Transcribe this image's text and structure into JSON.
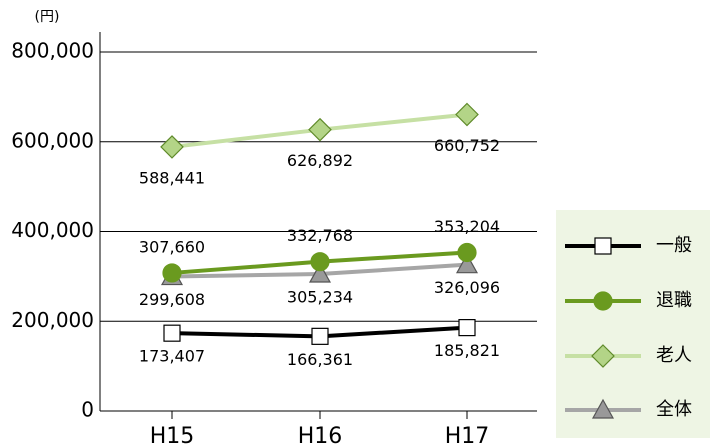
{
  "chart_data": {
    "type": "line",
    "unit_label": "(円)",
    "categories": [
      "H15",
      "H16",
      "H17"
    ],
    "series": [
      {
        "name": "一般",
        "color": "#000000",
        "marker": "square",
        "marker_fill": "#ffffff",
        "values": [
          173407,
          166361,
          185821
        ],
        "value_labels": [
          "173,407",
          "166,361",
          "185,821"
        ]
      },
      {
        "name": "退職",
        "color": "#6a9a1f",
        "marker": "circle",
        "marker_fill": "#6a9a1f",
        "values": [
          307660,
          332768,
          353204
        ],
        "value_labels": [
          "307,660",
          "332,768",
          "353,204"
        ]
      },
      {
        "name": "老人",
        "color": "#c6e0a4",
        "marker": "diamond",
        "marker_fill": "#b3d487",
        "values": [
          588441,
          626892,
          660752
        ],
        "value_labels": [
          "588,441",
          "626,892",
          "660,752"
        ]
      },
      {
        "name": "全体",
        "color": "#a6a6a6",
        "marker": "triangle",
        "marker_fill": "#999999",
        "values": [
          299608,
          305234,
          326096
        ],
        "value_labels": [
          "299,608",
          "305,234",
          "326,096"
        ]
      }
    ],
    "ylim": [
      0,
      800000
    ],
    "yticks": [
      0,
      {
        "value": 200000,
        "label": "200,000"
      },
      {
        "value": 400000,
        "label": "400,000"
      },
      {
        "value": 600000,
        "label": "600,000"
      },
      {
        "value": 800000,
        "label": "800,000"
      }
    ],
    "grid": true,
    "legend": "lower right"
  }
}
